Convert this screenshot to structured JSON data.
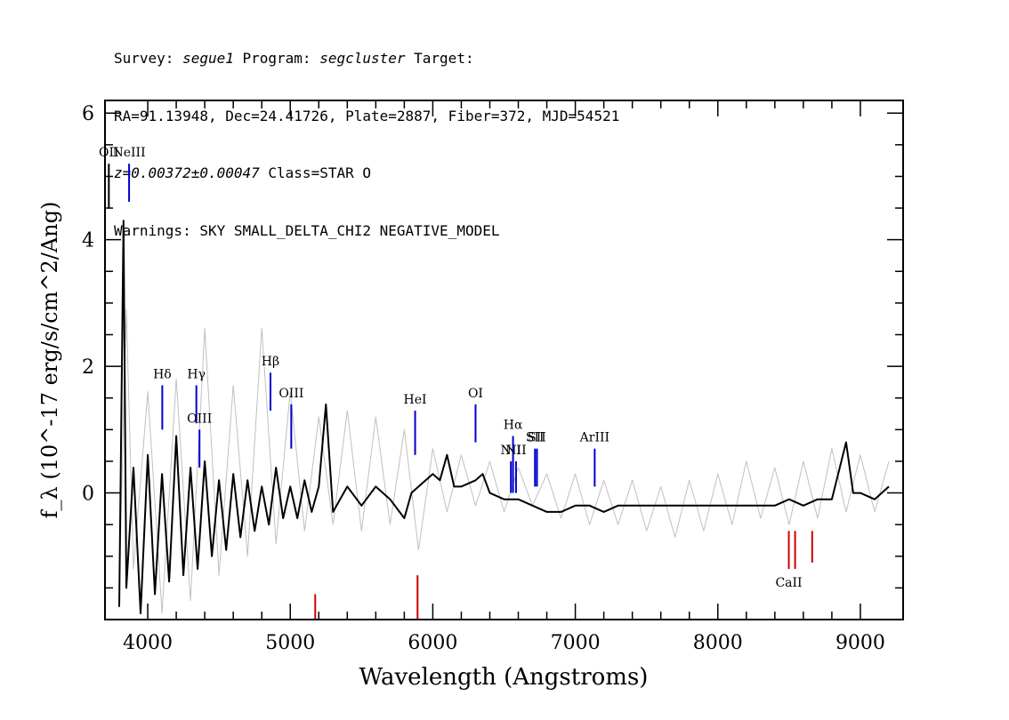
{
  "header": {
    "line1_a": "Survey: ",
    "line1_survey": "segue1",
    "line1_b": " Program: ",
    "line1_program": "segcluster",
    "line1_c": " Target:",
    "line2": "RA=91.13948, Dec=24.41726, Plate=2887, Fiber=372, MJD=54521",
    "line3_z": "z=0.00372±0.00047",
    "line3_class": " Class=STAR O",
    "line4": "Warnings: SKY SMALL_DELTA_CHI2 NEGATIVE_MODEL"
  },
  "chart_data": {
    "type": "line",
    "xlabel": "Wavelength (Angstroms)",
    "ylabel": "f_λ (10^-17 erg/s/cm^2/Ang)",
    "xlim": [
      3700,
      9300
    ],
    "ylim": [
      -2.0,
      6.2
    ],
    "x_ticks": [
      4000,
      5000,
      6000,
      7000,
      8000,
      9000
    ],
    "y_ticks": [
      0,
      2,
      4,
      6
    ],
    "grid": false,
    "series": [
      {
        "role": "flux (noisy)",
        "color": "#c0c0c0",
        "points": [
          [
            3800,
            -1.5
          ],
          [
            3850,
            2.9
          ],
          [
            3900,
            -1.2
          ],
          [
            4000,
            1.6
          ],
          [
            4100,
            -1.9
          ],
          [
            4200,
            1.8
          ],
          [
            4300,
            -1.7
          ],
          [
            4400,
            2.6
          ],
          [
            4500,
            -1.3
          ],
          [
            4600,
            1.7
          ],
          [
            4700,
            -1.0
          ],
          [
            4800,
            2.6
          ],
          [
            4900,
            -0.8
          ],
          [
            5000,
            1.6
          ],
          [
            5100,
            -0.6
          ],
          [
            5200,
            1.2
          ],
          [
            5300,
            -0.5
          ],
          [
            5400,
            1.3
          ],
          [
            5500,
            -0.6
          ],
          [
            5600,
            1.2
          ],
          [
            5700,
            -0.5
          ],
          [
            5800,
            1.0
          ],
          [
            5900,
            -0.9
          ],
          [
            6000,
            0.7
          ],
          [
            6100,
            -0.3
          ],
          [
            6200,
            0.6
          ],
          [
            6300,
            -0.2
          ],
          [
            6400,
            0.5
          ],
          [
            6500,
            -0.3
          ],
          [
            6600,
            0.4
          ],
          [
            6700,
            -0.2
          ],
          [
            6800,
            0.3
          ],
          [
            6900,
            -0.4
          ],
          [
            7000,
            0.3
          ],
          [
            7100,
            -0.5
          ],
          [
            7200,
            0.2
          ],
          [
            7300,
            -0.5
          ],
          [
            7400,
            0.2
          ],
          [
            7500,
            -0.6
          ],
          [
            7600,
            0.1
          ],
          [
            7700,
            -0.7
          ],
          [
            7800,
            0.2
          ],
          [
            7900,
            -0.6
          ],
          [
            8000,
            0.3
          ],
          [
            8100,
            -0.5
          ],
          [
            8200,
            0.5
          ],
          [
            8300,
            -0.4
          ],
          [
            8400,
            0.4
          ],
          [
            8500,
            -0.5
          ],
          [
            8600,
            0.5
          ],
          [
            8700,
            -0.4
          ],
          [
            8800,
            0.7
          ],
          [
            8900,
            -0.3
          ],
          [
            9000,
            0.6
          ],
          [
            9100,
            -0.3
          ],
          [
            9200,
            0.5
          ]
        ]
      },
      {
        "role": "flux (smoothed)",
        "color": "#000000",
        "points": [
          [
            3800,
            -1.8
          ],
          [
            3830,
            4.3
          ],
          [
            3850,
            -1.5
          ],
          [
            3900,
            0.4
          ],
          [
            3950,
            -1.9
          ],
          [
            4000,
            0.6
          ],
          [
            4050,
            -1.6
          ],
          [
            4100,
            0.3
          ],
          [
            4150,
            -1.4
          ],
          [
            4200,
            0.9
          ],
          [
            4250,
            -1.3
          ],
          [
            4300,
            0.4
          ],
          [
            4350,
            -1.2
          ],
          [
            4400,
            0.5
          ],
          [
            4450,
            -1.0
          ],
          [
            4500,
            0.2
          ],
          [
            4550,
            -0.9
          ],
          [
            4600,
            0.3
          ],
          [
            4650,
            -0.7
          ],
          [
            4700,
            0.2
          ],
          [
            4750,
            -0.6
          ],
          [
            4800,
            0.1
          ],
          [
            4850,
            -0.5
          ],
          [
            4900,
            0.4
          ],
          [
            4950,
            -0.4
          ],
          [
            5000,
            0.1
          ],
          [
            5050,
            -0.4
          ],
          [
            5100,
            0.2
          ],
          [
            5150,
            -0.3
          ],
          [
            5200,
            0.1
          ],
          [
            5250,
            1.4
          ],
          [
            5300,
            -0.3
          ],
          [
            5400,
            0.1
          ],
          [
            5500,
            -0.2
          ],
          [
            5600,
            0.1
          ],
          [
            5700,
            -0.1
          ],
          [
            5800,
            -0.4
          ],
          [
            5850,
            0.0
          ],
          [
            5900,
            0.1
          ],
          [
            6000,
            0.3
          ],
          [
            6050,
            0.2
          ],
          [
            6100,
            0.6
          ],
          [
            6150,
            0.1
          ],
          [
            6200,
            0.1
          ],
          [
            6300,
            0.2
          ],
          [
            6350,
            0.3
          ],
          [
            6400,
            0.0
          ],
          [
            6500,
            -0.1
          ],
          [
            6600,
            -0.1
          ],
          [
            6700,
            -0.2
          ],
          [
            6800,
            -0.3
          ],
          [
            6900,
            -0.3
          ],
          [
            7000,
            -0.2
          ],
          [
            7100,
            -0.2
          ],
          [
            7200,
            -0.3
          ],
          [
            7300,
            -0.2
          ],
          [
            7400,
            -0.2
          ],
          [
            7500,
            -0.2
          ],
          [
            7600,
            -0.2
          ],
          [
            7700,
            -0.2
          ],
          [
            7800,
            -0.2
          ],
          [
            7900,
            -0.2
          ],
          [
            8000,
            -0.2
          ],
          [
            8100,
            -0.2
          ],
          [
            8200,
            -0.2
          ],
          [
            8300,
            -0.2
          ],
          [
            8400,
            -0.2
          ],
          [
            8500,
            -0.1
          ],
          [
            8600,
            -0.2
          ],
          [
            8700,
            -0.1
          ],
          [
            8800,
            -0.1
          ],
          [
            8900,
            0.8
          ],
          [
            8950,
            0.0
          ],
          [
            9000,
            0.0
          ],
          [
            9100,
            -0.1
          ],
          [
            9200,
            0.1
          ]
        ]
      }
    ],
    "emission_lines": [
      {
        "label": "OII",
        "x": 3727,
        "y_top": 5.2,
        "y_bottom": 4.5,
        "color": "#000000"
      },
      {
        "label": "NeIII",
        "x": 3869,
        "y_top": 5.2,
        "y_bottom": 4.6,
        "color": "#0000cc"
      },
      {
        "label": "Hδ",
        "x": 4102,
        "y_top": 1.7,
        "y_bottom": 1.0,
        "color": "#0000cc"
      },
      {
        "label": "Hγ",
        "x": 4341,
        "y_top": 1.7,
        "y_bottom": 1.1,
        "color": "#0000cc"
      },
      {
        "label": "OIII",
        "x": 4363,
        "y_top": 1.0,
        "y_bottom": 0.4,
        "color": "#0000cc"
      },
      {
        "label": "Hβ",
        "x": 4861,
        "y_top": 1.9,
        "y_bottom": 1.3,
        "color": "#0000cc"
      },
      {
        "label": "OIII",
        "x": 5007,
        "y_top": 1.4,
        "y_bottom": 0.7,
        "color": "#0000cc"
      },
      {
        "label": "HeI",
        "x": 5876,
        "y_top": 1.3,
        "y_bottom": 0.6,
        "color": "#0000cc"
      },
      {
        "label": "OI",
        "x": 6300,
        "y_top": 1.4,
        "y_bottom": 0.8,
        "color": "#0000cc"
      },
      {
        "label": "NII",
        "x": 6548,
        "y_top": 0.5,
        "y_bottom": 0.0,
        "color": "#0000cc"
      },
      {
        "label": "Hα",
        "x": 6563,
        "y_top": 0.9,
        "y_bottom": 0.0,
        "color": "#0000cc"
      },
      {
        "label": "NII",
        "x": 6584,
        "y_top": 0.5,
        "y_bottom": 0.0,
        "color": "#0000cc"
      },
      {
        "label": "SII",
        "x": 6717,
        "y_top": 0.7,
        "y_bottom": 0.1,
        "color": "#0000cc"
      },
      {
        "label": "SII",
        "x": 6731,
        "y_top": 0.7,
        "y_bottom": 0.1,
        "color": "#0000cc"
      },
      {
        "label": "ArIII",
        "x": 7136,
        "y_top": 0.7,
        "y_bottom": 0.1,
        "color": "#0000cc"
      }
    ],
    "absorption_lines": [
      {
        "label": "",
        "x": 5175,
        "y_top": -1.6,
        "y_bottom": -2.0,
        "color": "#cc0000"
      },
      {
        "label": "",
        "x": 5893,
        "y_top": -1.3,
        "y_bottom": -2.0,
        "color": "#cc0000"
      },
      {
        "label": "CaII",
        "x": 8498,
        "y_top": -0.6,
        "y_bottom": -1.2,
        "color": "#cc0000"
      },
      {
        "label": "",
        "x": 8542,
        "y_top": -0.6,
        "y_bottom": -1.2,
        "color": "#cc0000"
      },
      {
        "label": "",
        "x": 8662,
        "y_top": -0.6,
        "y_bottom": -1.1,
        "color": "#cc0000"
      }
    ]
  }
}
